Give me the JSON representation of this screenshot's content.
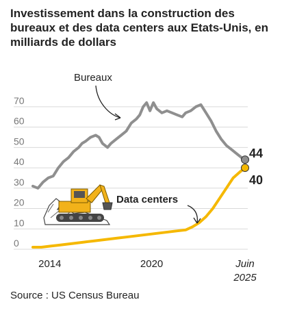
{
  "title": {
    "bold": "Investissement dans la construction",
    "rest": " des bureaux et des data centers aux Etats-Unis, en milliards de dollars"
  },
  "source": "Source : US Census Bureau",
  "colors": {
    "bureaux": "#8f8f8f",
    "data_centers": "#f5b800",
    "grid": "#d9d9d9",
    "excavator": "#f2b21a"
  },
  "chart_data": {
    "type": "line",
    "ylim": [
      0,
      75
    ],
    "yticks": [
      "0",
      "10",
      "20",
      "30",
      "40",
      "50",
      "60",
      "70"
    ],
    "xticks": [
      {
        "x": 2014,
        "label": "2014"
      },
      {
        "x": 2020,
        "label": "2020"
      },
      {
        "x": 2025.5,
        "label": "Juin",
        "label2": "2025"
      }
    ],
    "grid": true,
    "series": [
      {
        "name": "Bureaux",
        "end_label": "44",
        "points": [
          [
            2013.0,
            31
          ],
          [
            2013.3,
            30
          ],
          [
            2013.6,
            33
          ],
          [
            2013.9,
            35
          ],
          [
            2014.2,
            36
          ],
          [
            2014.5,
            40
          ],
          [
            2014.8,
            43
          ],
          [
            2015.1,
            45
          ],
          [
            2015.4,
            48
          ],
          [
            2015.7,
            50
          ],
          [
            2015.9,
            52
          ],
          [
            2016.1,
            53
          ],
          [
            2016.4,
            55
          ],
          [
            2016.7,
            56
          ],
          [
            2016.9,
            55
          ],
          [
            2017.1,
            52
          ],
          [
            2017.4,
            50
          ],
          [
            2017.6,
            52
          ],
          [
            2017.9,
            54
          ],
          [
            2018.2,
            56
          ],
          [
            2018.5,
            58
          ],
          [
            2018.8,
            62
          ],
          [
            2019.1,
            64
          ],
          [
            2019.3,
            66
          ],
          [
            2019.5,
            70
          ],
          [
            2019.7,
            72
          ],
          [
            2019.9,
            68
          ],
          [
            2020.1,
            72
          ],
          [
            2020.3,
            69
          ],
          [
            2020.6,
            67
          ],
          [
            2020.9,
            68
          ],
          [
            2021.2,
            67
          ],
          [
            2021.5,
            66
          ],
          [
            2021.8,
            65
          ],
          [
            2022.0,
            67
          ],
          [
            2022.3,
            68
          ],
          [
            2022.6,
            70
          ],
          [
            2022.9,
            71
          ],
          [
            2023.2,
            67
          ],
          [
            2023.5,
            63
          ],
          [
            2023.8,
            58
          ],
          [
            2024.1,
            54
          ],
          [
            2024.4,
            51
          ],
          [
            2024.7,
            49
          ],
          [
            2025.0,
            47
          ],
          [
            2025.3,
            45
          ],
          [
            2025.5,
            44
          ]
        ]
      },
      {
        "name": "Data centers",
        "end_label": "40",
        "points": [
          [
            2013.0,
            1
          ],
          [
            2013.5,
            1
          ],
          [
            2014.0,
            1.5
          ],
          [
            2014.5,
            2
          ],
          [
            2015.0,
            2.5
          ],
          [
            2015.5,
            3
          ],
          [
            2016.0,
            3.5
          ],
          [
            2016.5,
            4
          ],
          [
            2017.0,
            4.5
          ],
          [
            2017.5,
            5
          ],
          [
            2018.0,
            5.5
          ],
          [
            2018.5,
            6
          ],
          [
            2019.0,
            6.5
          ],
          [
            2019.5,
            7
          ],
          [
            2020.0,
            7.5
          ],
          [
            2020.5,
            8
          ],
          [
            2021.0,
            8.5
          ],
          [
            2021.5,
            9
          ],
          [
            2022.0,
            9.5
          ],
          [
            2022.4,
            11
          ],
          [
            2022.8,
            13
          ],
          [
            2023.2,
            16
          ],
          [
            2023.6,
            20
          ],
          [
            2024.0,
            25
          ],
          [
            2024.4,
            30
          ],
          [
            2024.8,
            35
          ],
          [
            2025.2,
            38
          ],
          [
            2025.5,
            40
          ]
        ]
      }
    ]
  }
}
